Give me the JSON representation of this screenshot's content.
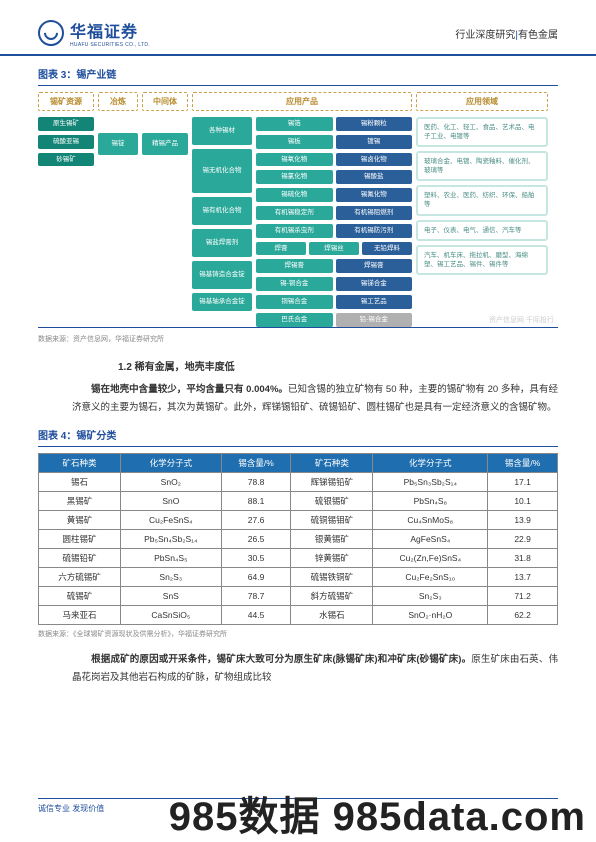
{
  "header": {
    "logo_cn": "华福证券",
    "logo_en": "HUAFU SECURITIES CO., LTD.",
    "right_a": "行业深度研究",
    "right_b": "有色金属"
  },
  "fig3": {
    "title": "图表 3：锡产业链",
    "col_headers": [
      "锡矿资源",
      "冶炼",
      "中间体",
      "应用产品",
      "应用领域"
    ],
    "col1": [
      "原生锡矿",
      "硫酸亚锡",
      "砂锡矿"
    ],
    "col2": "锡锭",
    "col3_top": "精锡产品",
    "c4_left": [
      "各种锡材",
      "锡无机化合物",
      "锡有机化合物",
      "锡盐焊膏剂",
      "锡基铸造合金锭",
      "锡基轴承合金锭"
    ],
    "c4_r1": {
      "a": "锡箔",
      "b": "锡粉颗粒",
      "c": "锡板",
      "d": "镀锡"
    },
    "c4_r2": {
      "a": "锡氧化物",
      "b": "锡氯化物",
      "c": "锡硫化物",
      "d": "锡卤化物",
      "e": "锡酸盐",
      "f": "锡氟化物"
    },
    "c4_r3": {
      "a": "有机锡稳定剂",
      "b": "有机锡阻燃剂",
      "c": "有机锡杀虫剂",
      "d": "有机锡防污剂"
    },
    "c4_r4": {
      "a": "焊膏",
      "b": "焊锡丝",
      "c": "焊锡膏",
      "d": "无铅焊料",
      "e": "焊锡膏"
    },
    "c4_r5": {
      "a": "锡-铜合金",
      "b": "铜锡合金",
      "c": "锡锑合金",
      "d": "锡工艺品"
    },
    "c4_r6": {
      "a": "巴氏合金",
      "b": "铅-锡合金"
    },
    "c5": [
      "医药、化工、轻工、食品、艺术品、电子工业、电镀等",
      "玻璃合金、电镀、陶瓷釉料、催化剂、玻璃等",
      "塑料、农业、医药、纺织、环保、船舶等",
      "电子、仪表、电气、通信、汽车等",
      "汽车、机车床、拖拉机、磨型、海绵塑、锡工艺品、锡件、锡件等"
    ],
    "source": "数据来源：资产信息网，华福证券研究所",
    "wm": "资产信息网 千际投行"
  },
  "sec12": {
    "heading": "1.2 稀有金属，地壳丰度低",
    "para": "锡在地壳中含量较少，平均含量只有 0.004%。已知含锡的独立矿物有 50 种，主要的锡矿物有 20 多种，具有经济意义的主要为锡石，其次为黄锡矿。此外，辉锑锡铅矿、硫锡铅矿、圆柱锡矿也是具有一定经济意义的含锡矿物。",
    "bold_prefix": "锡在地壳中含量较少，平均含量只有 0.004%。"
  },
  "fig4": {
    "title": "图表 4：锡矿分类",
    "headers": [
      "矿石种类",
      "化学分子式",
      "锡含量/%",
      "矿石种类",
      "化学分子式",
      "锡含量/%"
    ],
    "rows": [
      [
        "锡石",
        "SnO₂",
        "78.8",
        "辉锑锡铅矿",
        "Pb₅Sn₃Sb₂S₁₄",
        "17.1"
      ],
      [
        "黑锡矿",
        "SnO",
        "88.1",
        "硫银锡矿",
        "PbSn₄S₈",
        "10.1"
      ],
      [
        "黄锡矿",
        "Cu₂FeSnS₄",
        "27.6",
        "硫铜锡钼矿",
        "Cu₄SnMoS₈",
        "13.9"
      ],
      [
        "圆柱锡矿",
        "Pb₅Sn₄Sb₂S₁₄",
        "26.5",
        "银黄锡矿",
        "AgFeSnS₄",
        "22.9"
      ],
      [
        "硫锡铅矿",
        "PbSn₄S₅",
        "30.5",
        "锌黄锡矿",
        "Cu₂(Zn,Fe)SnS₄",
        "31.8"
      ],
      [
        "六方硫锡矿",
        "Sn₂S₃",
        "64.9",
        "硫锡铁铜矿",
        "Cu₂Fe₂SnS₁₀",
        "13.7"
      ],
      [
        "硫锡矿",
        "SnS",
        "78.7",
        "斜方硫锡矿",
        "Sn₂S₃",
        "71.2"
      ],
      [
        "马来亚石",
        "CaSnSiO₅",
        "44.5",
        "水锡石",
        "SnO₂·nH₂O",
        "62.2"
      ]
    ],
    "source": "数据来源：《全球锡矿资源现状及供需分析》，华福证券研究所"
  },
  "para2": {
    "text_bold": "根据成矿的原因或开采条件，锡矿床大致可分为原生矿床(脉锡矿床)和冲矿床(砂锡矿床)。",
    "text_rest": "原生矿床由石英、伟晶花岗岩及其他岩石构成的矿脉，矿物组成比较"
  },
  "footer": {
    "left": "诚信专业  发现价值",
    "wm": "985数据 985data.com"
  }
}
